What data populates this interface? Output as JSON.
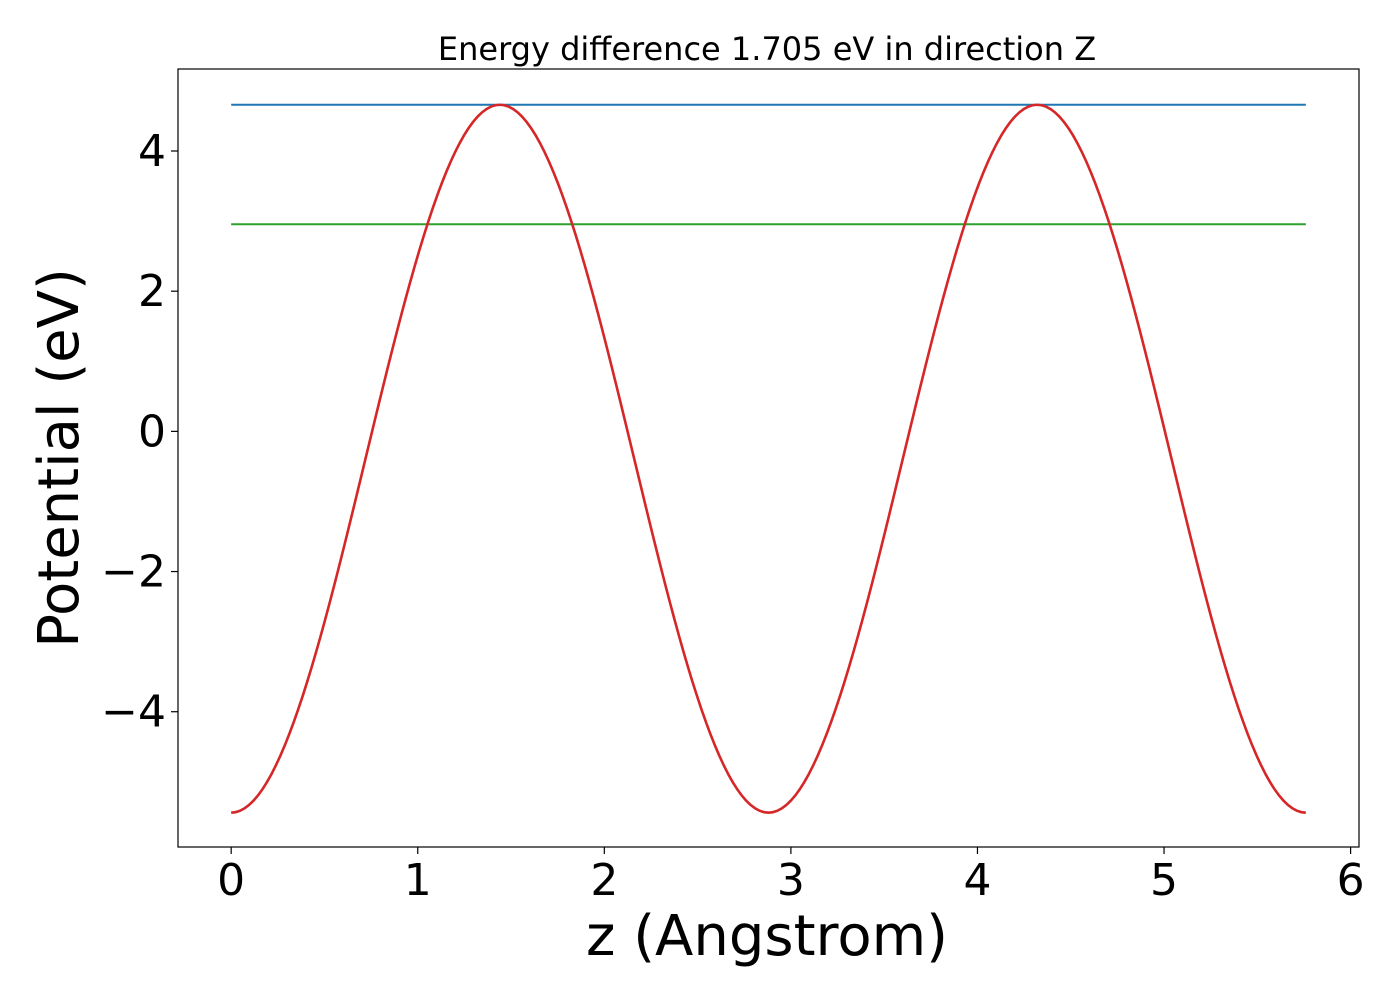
{
  "chart_data": {
    "type": "line",
    "title": "Energy difference 1.705 eV in direction Z",
    "xlabel": "z (Angstrom)",
    "ylabel": "Potential (eV)",
    "xlim": [
      -0.285,
      6.045
    ],
    "ylim": [
      -5.93,
      5.17
    ],
    "xticks": [
      0,
      1,
      2,
      3,
      4,
      5,
      6
    ],
    "xtick_labels": [
      "0",
      "1",
      "2",
      "3",
      "4",
      "5",
      "6"
    ],
    "yticks": [
      -4,
      -2,
      0,
      2,
      4
    ],
    "ytick_labels": [
      "−4",
      "−2",
      "0",
      "2",
      "4"
    ],
    "grid": false,
    "curve": {
      "color": "#d62728",
      "x_start": 0.0,
      "x_end": 5.76,
      "min": -5.44,
      "max": 4.66,
      "period": 2.88,
      "phase_x_of_min": 0.0
    },
    "hlines": [
      {
        "y": 4.66,
        "x_start": 0.0,
        "x_end": 5.76,
        "color": "#1f77b4"
      },
      {
        "y": 2.955,
        "x_start": 0.0,
        "x_end": 5.76,
        "color": "#2ca02c"
      }
    ]
  }
}
